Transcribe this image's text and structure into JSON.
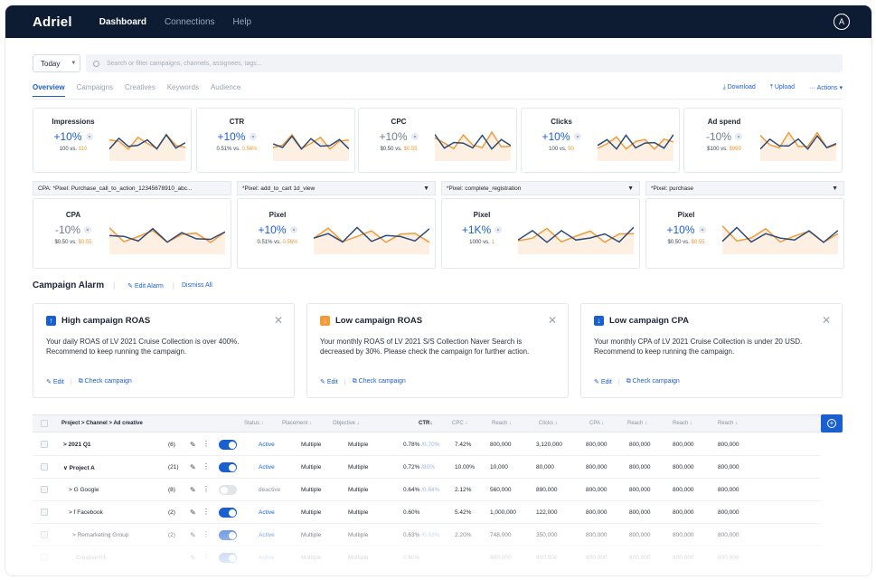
{
  "app": {
    "logo": "Adriel",
    "nav": [
      "Dashboard",
      "Connections",
      "Help"
    ],
    "avatar_initial": "A"
  },
  "filters": {
    "date_range": "Today",
    "search_placeholder": "Search or filter campaigns, channels, assignees, tags..."
  },
  "tabs": [
    "Overview",
    "Campaigns",
    "Creatives",
    "Keywords",
    "Audience"
  ],
  "actions": {
    "download": "Download",
    "upload": "Upload",
    "more": "Actions"
  },
  "metrics_row1": [
    {
      "label": "Impressions",
      "value": "+10%",
      "trend": "pos",
      "current": "100",
      "prev": "110"
    },
    {
      "label": "CTR",
      "value": "+10%",
      "trend": "pos",
      "current": "0.51%",
      "prev": "0.56%"
    },
    {
      "label": "CPC",
      "value": "+10%",
      "trend": "neg",
      "current": "$0.50",
      "prev": "$0.55"
    },
    {
      "label": "Clicks",
      "value": "+10%",
      "trend": "pos",
      "current": "100",
      "prev": "90"
    },
    {
      "label": "Ad spend",
      "value": "-10%",
      "trend": "neg",
      "current": "$100",
      "prev": "$999"
    }
  ],
  "pixel_dropdowns": [
    "CPA: *Pixel: Purchase_call_to_action_12345678910_abc...",
    "*Pixel: add_to_cart 1d_view",
    "*Pixel: complete_registration",
    "*Pixel: purchase"
  ],
  "metrics_row2": [
    {
      "label": "CPA",
      "value": "-10%",
      "trend": "neg",
      "current": "$0.50",
      "prev": "$0.55"
    },
    {
      "label": "Pixel",
      "value": "+10%",
      "trend": "pos",
      "current": "0.51%",
      "prev": "0.56%"
    },
    {
      "label": "Pixel",
      "value": "+1K%",
      "trend": "pos",
      "current": "1000",
      "prev": "1"
    },
    {
      "label": "Pixel",
      "value": "+10%",
      "trend": "pos",
      "current": "$0.50",
      "prev": "$0.55"
    }
  ],
  "vs_label": "vs.",
  "alarm_section": {
    "title": "Campaign Alarm",
    "edit": "Edit Alarm",
    "dismiss": "Dismiss All"
  },
  "alarms": [
    {
      "title": "High campaign ROAS",
      "icon": "arrow-up-icon",
      "color": "#1a5fd0",
      "body": "Your daily ROAS of LV 2021 Cruise Collection is over 400%. Recommend to keep running the campaign.",
      "edit": "Edit",
      "check": "Check campaign"
    },
    {
      "title": "Low campaign ROAS",
      "icon": "arrow-down-icon",
      "color": "#f29b38",
      "body": "Your monthly ROAS of LV 2021 S/S Collection Naver Search is decreased by 30%. Please check the campaign for further action.",
      "edit": "Edit",
      "check": "Check campaign"
    },
    {
      "title": "Low campaign CPA",
      "icon": "arrow-down-icon",
      "color": "#1a5fd0",
      "body": "Your monthly CPA of LV 2021 Cruise Collection is under 20 USD. Recommend to keep running the campaign.",
      "edit": "Edit",
      "check": "Check campaign"
    }
  ],
  "table": {
    "headers": [
      "Project > Channel > Ad creative",
      "Status ↓",
      "Placement ↓",
      "Objective ↓",
      "CTR↓",
      "CPC ↓",
      "Reach ↓",
      "Clicks ↓",
      "CPA ↓",
      "Reach ↓",
      "Reach ↓",
      "Reach ↓"
    ],
    "rows": [
      {
        "name": "2021 Q1",
        "prefix": ">",
        "count": "(6)",
        "toggle": "on",
        "status": "Active",
        "placement": "Multiple",
        "objective": "Multiple",
        "ctr": "0.78%",
        "ctr_prev": "/0.70%",
        "cpc": "7.42%",
        "reach": "800,000",
        "clicks": "3,120,000",
        "cpa": "800,000",
        "r2": "800,000",
        "r3": "800,000",
        "r4": "800,000"
      },
      {
        "name": "Project A",
        "prefix": "∨",
        "count": "(21)",
        "toggle": "on",
        "status": "Active",
        "placement": "Multiple",
        "objective": "Multiple",
        "ctr": "0.72%",
        "ctr_prev": "/80%",
        "cpc": "10.00%",
        "reach": "10,000",
        "clicks": "80,000",
        "cpa": "800,000",
        "r2": "800,000",
        "r3": "800,000",
        "r4": "800,000"
      },
      {
        "name": "Google",
        "prefix": "> G",
        "count": "(8)",
        "toggle": "off",
        "status": "deactive",
        "placement": "Multiple",
        "objective": "Multiple",
        "ctr": "0.64%",
        "ctr_prev": "/0.64%",
        "cpc": "2.12%",
        "reach": "560,000",
        "clicks": "890,000",
        "cpa": "800,000",
        "r2": "800,000",
        "r3": "800,000",
        "r4": "800,000"
      },
      {
        "name": "Facebook",
        "prefix": "> f",
        "count": "(2)",
        "toggle": "on",
        "status": "Active",
        "placement": "Multiple",
        "objective": "Multiple",
        "ctr": "0.60%",
        "ctr_prev": "",
        "cpc": "5.42%",
        "reach": "1,000,000",
        "clicks": "122,000",
        "cpa": "800,000",
        "r2": "800,000",
        "r3": "800,000",
        "r4": "800,000"
      },
      {
        "name": "Remarketing Group",
        "prefix": ">",
        "count": "(2)",
        "toggle": "on",
        "status": "Active",
        "placement": "Multiple",
        "objective": "Multiple",
        "ctr": "0.63%",
        "ctr_prev": "/0.63%",
        "cpc": "2.20%",
        "reach": "748,000",
        "clicks": "350,000",
        "cpa": "800,000",
        "r2": "800,000",
        "r3": "800,000",
        "r4": "800,000"
      },
      {
        "name": "Creative 01",
        "prefix": "",
        "count": "",
        "toggle": "on",
        "status": "Active",
        "placement": "Multiple",
        "objective": "Multiple",
        "ctr": "0.60%",
        "ctr_prev": "",
        "cpc": "",
        "reach": "800,000",
        "clicks": "800,000",
        "cpa": "800,000",
        "r2": "800,000",
        "r3": "800,000",
        "r4": "800,000"
      }
    ]
  },
  "colors": {
    "navy": "#0d1b33",
    "accent": "#1a5fd0",
    "orange": "#f29b38"
  }
}
